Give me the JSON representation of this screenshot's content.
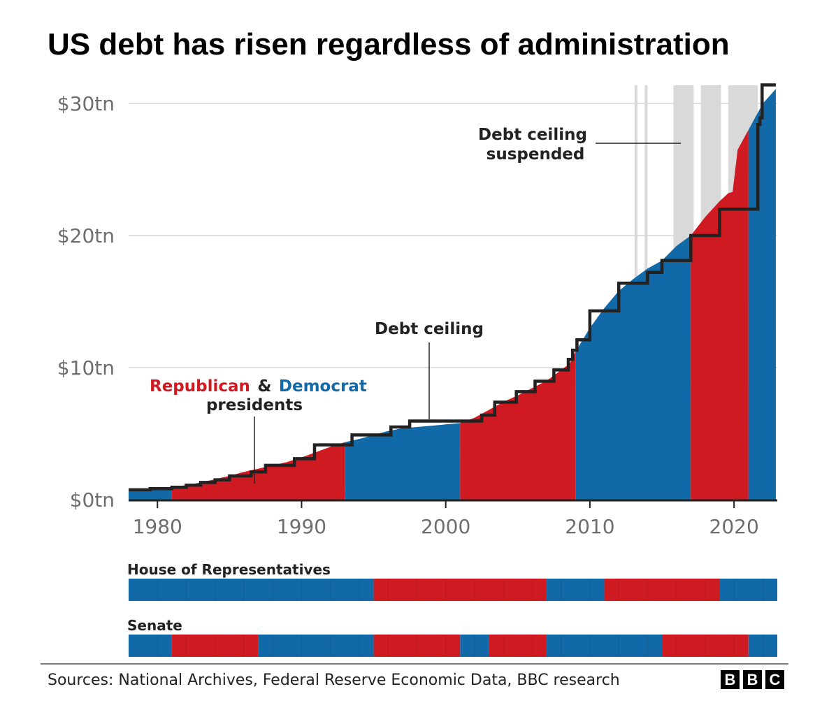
{
  "colors": {
    "republican": "#cf1a21",
    "democrat": "#1269a8",
    "suspended": "#d9d9d9",
    "ceiling": "#222222",
    "grid": "#cccccc"
  },
  "chart_data": {
    "type": "area",
    "title": "US debt has risen regardless of administration",
    "xlabel": "",
    "ylabel": "",
    "xlim": [
      1978,
      2023
    ],
    "ylim": [
      0,
      30
    ],
    "y_ticks": [
      {
        "value": 0,
        "label": "$0tn"
      },
      {
        "value": 10,
        "label": "$10tn"
      },
      {
        "value": 20,
        "label": "$20tn"
      },
      {
        "value": 30,
        "label": "$30tn"
      }
    ],
    "x_ticks": [
      {
        "value": 1980,
        "label": "1980"
      },
      {
        "value": 1990,
        "label": "1990"
      },
      {
        "value": 2000,
        "label": "2000"
      },
      {
        "value": 2010,
        "label": "2010"
      },
      {
        "value": 2020,
        "label": "2020"
      }
    ],
    "debt_series": {
      "name": "US federal debt ($tn)",
      "points": [
        [
          1978.0,
          0.75
        ],
        [
          1979.0,
          0.8
        ],
        [
          1980.0,
          0.87
        ],
        [
          1981.0,
          0.96
        ],
        [
          1982.0,
          1.1
        ],
        [
          1983.0,
          1.3
        ],
        [
          1984.0,
          1.55
        ],
        [
          1985.0,
          1.8
        ],
        [
          1986.0,
          2.1
        ],
        [
          1987.0,
          2.35
        ],
        [
          1988.0,
          2.6
        ],
        [
          1989.0,
          2.85
        ],
        [
          1990.0,
          3.2
        ],
        [
          1991.0,
          3.6
        ],
        [
          1992.0,
          4.0
        ],
        [
          1993.0,
          4.35
        ],
        [
          1994.0,
          4.6
        ],
        [
          1995.0,
          4.9
        ],
        [
          1996.0,
          5.2
        ],
        [
          1997.0,
          5.4
        ],
        [
          1998.0,
          5.5
        ],
        [
          1999.0,
          5.6
        ],
        [
          2000.0,
          5.7
        ],
        [
          2001.0,
          5.8
        ],
        [
          2002.0,
          6.2
        ],
        [
          2003.0,
          6.8
        ],
        [
          2004.0,
          7.4
        ],
        [
          2005.0,
          7.9
        ],
        [
          2006.0,
          8.45
        ],
        [
          2007.0,
          9.0
        ],
        [
          2008.0,
          9.8
        ],
        [
          2008.6,
          10.3
        ],
        [
          2009.0,
          11.2
        ],
        [
          2010.0,
          13.0
        ],
        [
          2011.0,
          14.5
        ],
        [
          2012.0,
          15.8
        ],
        [
          2013.0,
          16.7
        ],
        [
          2014.0,
          17.5
        ],
        [
          2015.0,
          18.1
        ],
        [
          2016.0,
          19.2
        ],
        [
          2017.0,
          20.0
        ],
        [
          2018.0,
          21.4
        ],
        [
          2019.0,
          22.6
        ],
        [
          2019.6,
          23.2
        ],
        [
          2019.9,
          23.3
        ],
        [
          2020.25,
          26.5
        ],
        [
          2021.0,
          28.0
        ],
        [
          2022.0,
          30.0
        ],
        [
          2022.9,
          31.1
        ]
      ]
    },
    "presidencies": [
      {
        "party": "Democrat",
        "start": 1978.0,
        "end": 1981.0
      },
      {
        "party": "Republican",
        "start": 1981.0,
        "end": 1993.0
      },
      {
        "party": "Democrat",
        "start": 1993.0,
        "end": 2001.0
      },
      {
        "party": "Republican",
        "start": 2001.0,
        "end": 2009.0
      },
      {
        "party": "Democrat",
        "start": 2009.0,
        "end": 2017.0
      },
      {
        "party": "Republican",
        "start": 2017.0,
        "end": 2021.0
      },
      {
        "party": "Democrat",
        "start": 2021.0,
        "end": 2022.9
      }
    ],
    "debt_ceiling": {
      "name": "Debt ceiling",
      "steps": [
        [
          1978.0,
          0.75
        ],
        [
          1979.5,
          0.83
        ],
        [
          1981.0,
          0.94
        ],
        [
          1982.0,
          1.1
        ],
        [
          1983.0,
          1.3
        ],
        [
          1984.0,
          1.5
        ],
        [
          1985.0,
          1.8
        ],
        [
          1986.5,
          2.1
        ],
        [
          1987.5,
          2.6
        ],
        [
          1989.5,
          3.1
        ],
        [
          1990.9,
          4.15
        ],
        [
          1993.5,
          4.9
        ],
        [
          1996.2,
          5.5
        ],
        [
          1997.5,
          5.95
        ],
        [
          2002.5,
          6.4
        ],
        [
          2003.4,
          7.38
        ],
        [
          2004.9,
          8.18
        ],
        [
          2006.2,
          8.97
        ],
        [
          2007.5,
          9.82
        ],
        [
          2008.5,
          10.62
        ],
        [
          2008.8,
          11.32
        ],
        [
          2009.1,
          12.1
        ],
        [
          2010.0,
          14.29
        ],
        [
          2012.0,
          16.39
        ],
        [
          2014.0,
          17.21
        ],
        [
          2015.0,
          18.11
        ],
        [
          2017.0,
          20.0
        ],
        [
          2019.0,
          22.0
        ],
        [
          2021.0,
          22.0
        ],
        [
          2021.65,
          28.4
        ],
        [
          2021.8,
          28.9
        ],
        [
          2021.95,
          31.4
        ],
        [
          2022.9,
          31.4
        ]
      ]
    },
    "suspended_periods": [
      {
        "start": 2013.1,
        "end": 2013.3
      },
      {
        "start": 2013.8,
        "end": 2014.0
      },
      {
        "start": 2015.8,
        "end": 2017.2
      },
      {
        "start": 2017.7,
        "end": 2019.1
      },
      {
        "start": 2019.6,
        "end": 2021.65
      }
    ],
    "annotations": {
      "debt_ceiling_label": "Debt ceiling",
      "suspended_line1": "Debt ceiling",
      "suspended_line2": "suspended",
      "republican": "Republican",
      "ampersand": "&",
      "democrat": "Democrat",
      "presidents": "presidents"
    },
    "house": {
      "label": "House of Representatives",
      "segments": [
        {
          "party": "Democrat",
          "start": 1978.0,
          "end": 1995.0
        },
        {
          "party": "Republican",
          "start": 1995.0,
          "end": 2007.0
        },
        {
          "party": "Democrat",
          "start": 2007.0,
          "end": 2011.0
        },
        {
          "party": "Republican",
          "start": 2011.0,
          "end": 2019.0
        },
        {
          "party": "Democrat",
          "start": 2019.0,
          "end": 2023.0
        }
      ]
    },
    "senate": {
      "label": "Senate",
      "segments": [
        {
          "party": "Democrat",
          "start": 1978.0,
          "end": 1981.0
        },
        {
          "party": "Republican",
          "start": 1981.0,
          "end": 1987.0
        },
        {
          "party": "Democrat",
          "start": 1987.0,
          "end": 1995.0
        },
        {
          "party": "Republican",
          "start": 1995.0,
          "end": 2001.0
        },
        {
          "party": "Democrat",
          "start": 2001.0,
          "end": 2003.0
        },
        {
          "party": "Republican",
          "start": 2003.0,
          "end": 2007.0
        },
        {
          "party": "Democrat",
          "start": 2007.0,
          "end": 2015.0
        },
        {
          "party": "Republican",
          "start": 2015.0,
          "end": 2021.0
        },
        {
          "party": "Democrat",
          "start": 2021.0,
          "end": 2023.0
        }
      ]
    }
  },
  "footer": {
    "sources": "Sources: National Archives, Federal Reserve Economic Data, BBC research",
    "logo": [
      "B",
      "B",
      "C"
    ]
  }
}
